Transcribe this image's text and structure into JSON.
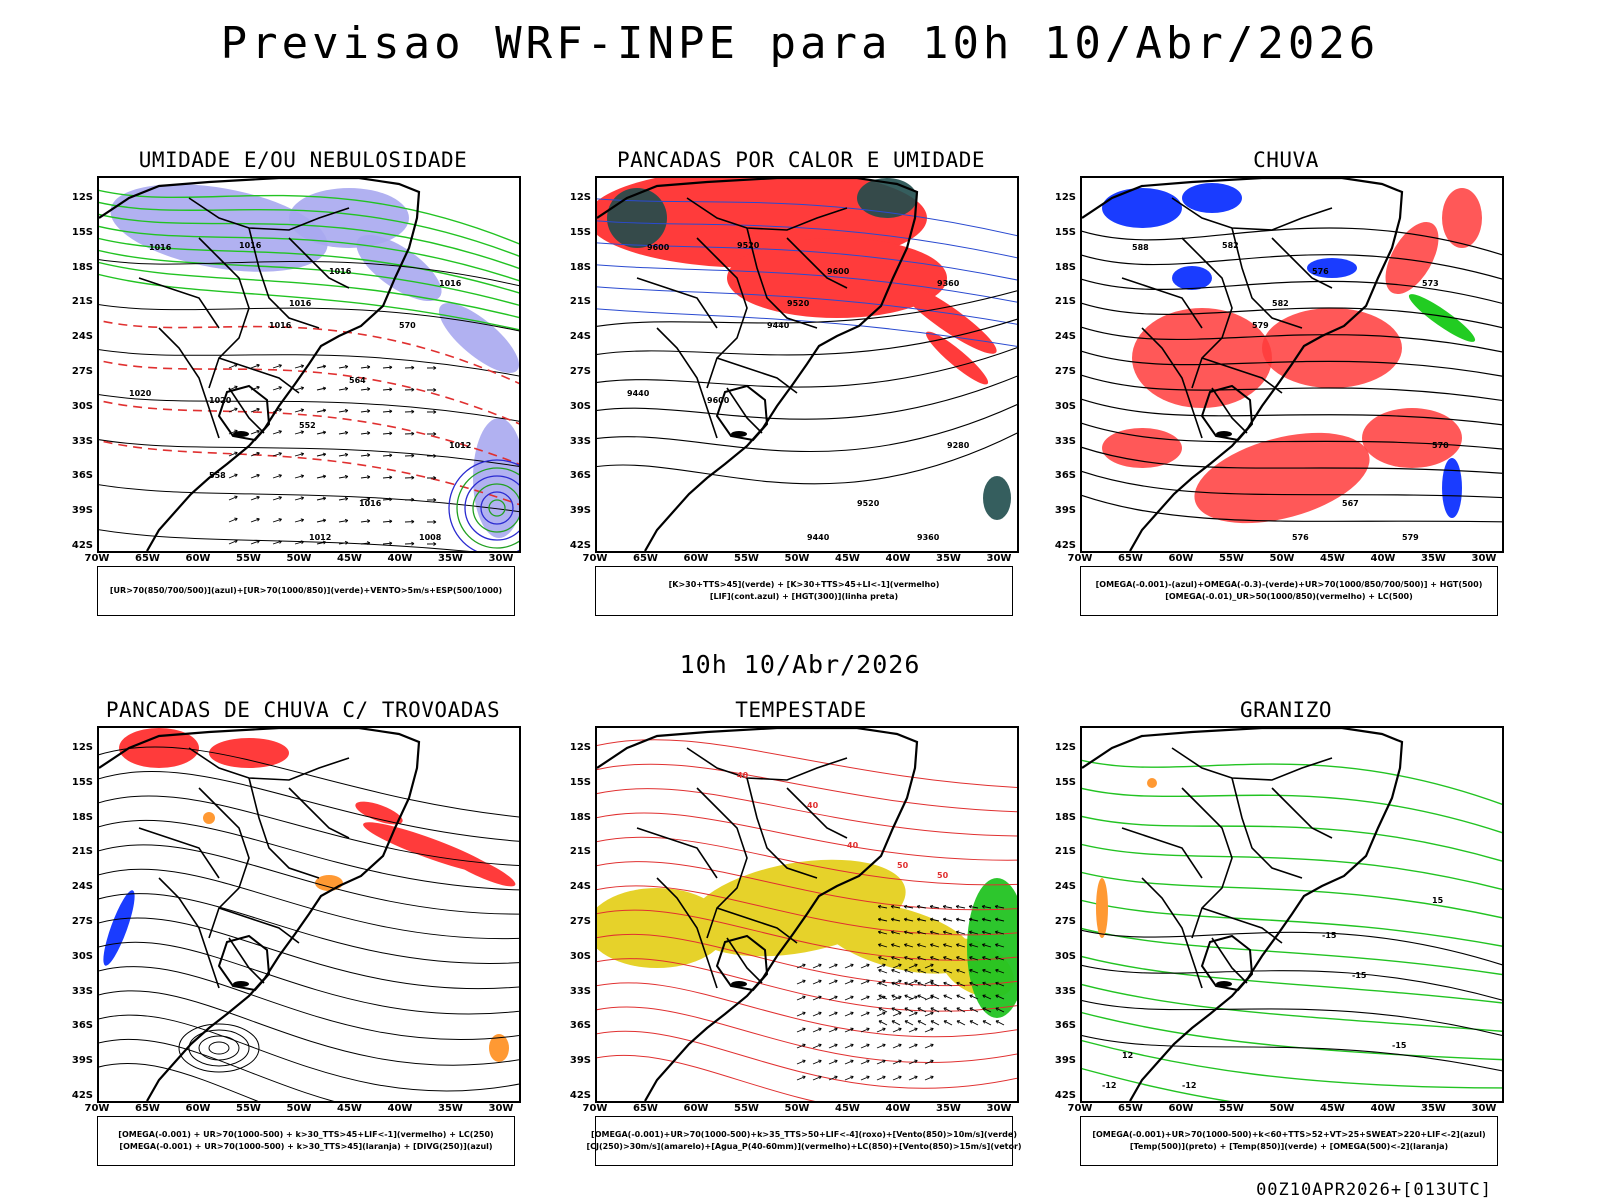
{
  "header": {
    "title": "Previsao WRF-INPE  para 10h 10/Abr/2026"
  },
  "subtitle": "10h 10/Abr/2026",
  "footer": "00Z10APR2026+[013UTC]",
  "axes": {
    "lat": [
      "12S",
      "15S",
      "18S",
      "21S",
      "24S",
      "27S",
      "30S",
      "33S",
      "36S",
      "39S",
      "42S"
    ],
    "lon": [
      "70W",
      "65W",
      "60W",
      "55W",
      "50W",
      "45W",
      "40W",
      "35W",
      "30W"
    ]
  },
  "panels": [
    {
      "title": "UMIDADE E/OU NEBULOSIDADE",
      "legend": [
        "[UR>70(850/700/500)](azul)+[UR>70(1000/850)](verde)+VENTO>5m/s+ESP(500/1000)"
      ],
      "contour_labels": [
        "1016",
        "1016",
        "1016",
        "1016",
        "1016",
        "1016",
        "1012",
        "1016",
        "1012",
        "1008",
        "1020",
        "1020",
        "570",
        "564",
        "558",
        "552"
      ]
    },
    {
      "title": "PANCADAS POR CALOR E UMIDADE",
      "legend": [
        "[K>30+TTS>45](verde) + [K>30+TTS>45+LI<-1](vermelho)",
        "[LIF](cont.azul) + [HGT(300)](linha preta)"
      ],
      "contour_labels": [
        "9600",
        "9520",
        "9600",
        "9520",
        "9440",
        "9360",
        "9280",
        "9520",
        "9440",
        "9360",
        "9440",
        "9600"
      ]
    },
    {
      "title": "CHUVA",
      "legend": [
        "[OMEGA(-0.001)-(azul)+OMEGA(-0.3)-(verde)+UR>70(1000/850/700/500)] + HGT(500)",
        "[OMEGA(-0.01)_UR>50(1000/850)(vermelho) + LC(500)"
      ],
      "contour_labels": [
        "588",
        "582",
        "576",
        "582",
        "579",
        "573",
        "570",
        "567",
        "576",
        "579"
      ]
    },
    {
      "title": "PANCADAS DE CHUVA C/ TROVOADAS",
      "legend": [
        "[OMEGA(-0.001) + UR>70(1000-500) + k>30_TTS>45+LIF<-1](vermelho) + LC(250)",
        "[OMEGA(-0.001) + UR>70(1000-500) + k>30_TTS>45](laranja) + [DIVG(250)](azul)"
      ],
      "contour_labels": []
    },
    {
      "title": "TEMPESTADE",
      "legend": [
        "[OMEGA(-0.001)+UR>70(1000-500)+k>35_TTS>50+LIF<-4](roxo)+[Vento(850)>10m/s](verde)",
        "[CJ(250)>30m/s](amarelo)+[Agua_P(40-60mm)](vermelho)+LC(850)+[Vento(850)>15m/s](vetor)"
      ],
      "contour_labels": [
        "40",
        "40",
        "40",
        "50",
        "50"
      ]
    },
    {
      "title": "GRANIZO",
      "legend": [
        "[OMEGA(-0.001)+UR>70(1000-500)+k<60+TTS>52+VT>25+SWEAT>220+LIF<-2](azul)",
        "[Temp(500)](preto) + [Temp(850)](verde) + [OMEGA(500)<-2](laranja)"
      ],
      "contour_labels": [
        "-15",
        "-15",
        "-15",
        "-12",
        "-12",
        "12",
        "15"
      ]
    }
  ]
}
